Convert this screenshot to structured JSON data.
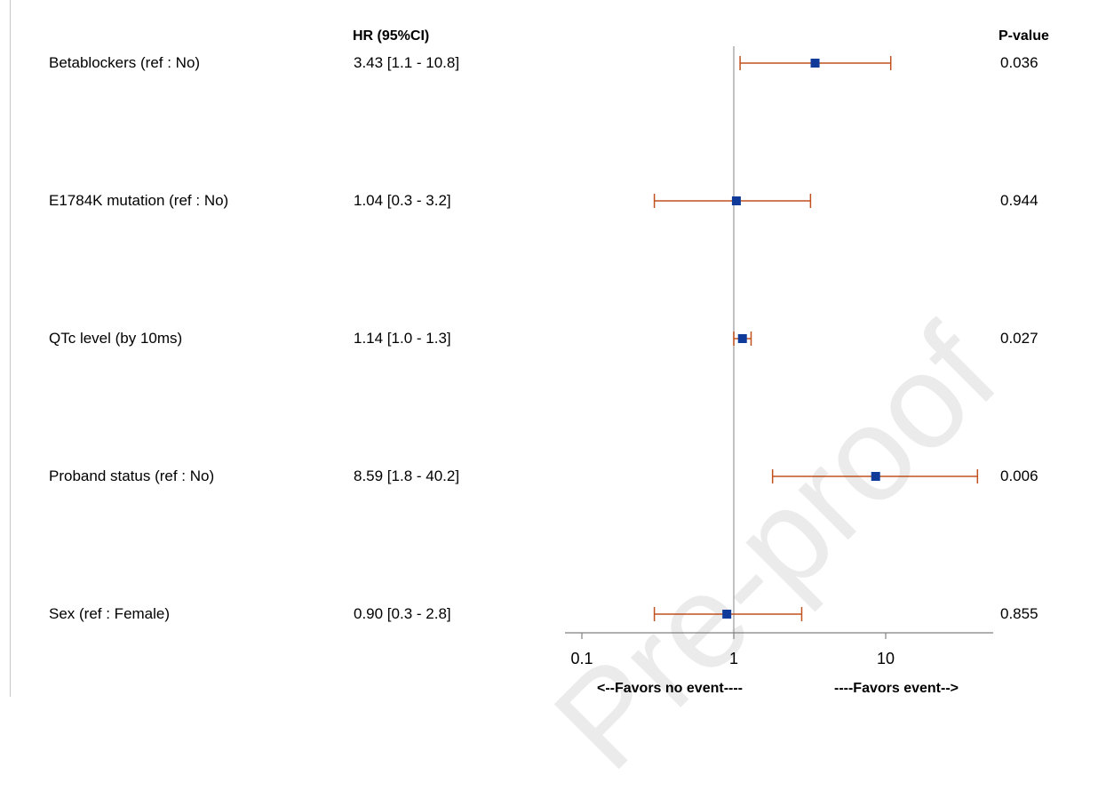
{
  "watermark": "Pre-proof",
  "columns": {
    "hr_header": "HR (95%CI)",
    "p_header": "P-value"
  },
  "rows": [
    {
      "label": "Betablockers (ref : No)",
      "hr_text": "3.43 [1.1 - 10.8]",
      "p": "0.036"
    },
    {
      "label": "E1784K mutation (ref : No)",
      "hr_text": "1.04 [0.3 - 3.2]",
      "p": "0.944"
    },
    {
      "label": "QTc level (by 10ms)",
      "hr_text": "1.14 [1.0 - 1.3]",
      "p": "0.027"
    },
    {
      "label": "Proband status (ref : No)",
      "hr_text": "8.59 [1.8 - 40.2]",
      "p": "0.006"
    },
    {
      "label": "Sex (ref : Female)",
      "hr_text": "0.90 [0.3 - 2.8]",
      "p": "0.855"
    }
  ],
  "chart_data": {
    "type": "scatter",
    "subtype": "forest",
    "x_scale": "log",
    "xlim": [
      0.08,
      45
    ],
    "x_ticks": [
      0.1,
      1,
      10
    ],
    "x_tick_labels": [
      "0.1",
      "1",
      "10"
    ],
    "reference_line": 1,
    "categories": [
      "Betablockers (ref : No)",
      "E1784K mutation (ref : No)",
      "QTc level (by 10ms)",
      "Proband status (ref : No)",
      "Sex (ref : Female)"
    ],
    "estimates": [
      3.43,
      1.04,
      1.14,
      8.59,
      0.9
    ],
    "ci_lower": [
      1.1,
      0.3,
      1.0,
      1.8,
      0.3
    ],
    "ci_upper": [
      10.8,
      3.2,
      1.3,
      40.2,
      2.8
    ],
    "annotations": {
      "left": "<--Favors no event----",
      "right": "----Favors event-->"
    },
    "colors": {
      "marker": "#0f3a9a",
      "ci": "#c0501e",
      "reference": "#a0a0a0",
      "axis": "#808080"
    }
  }
}
